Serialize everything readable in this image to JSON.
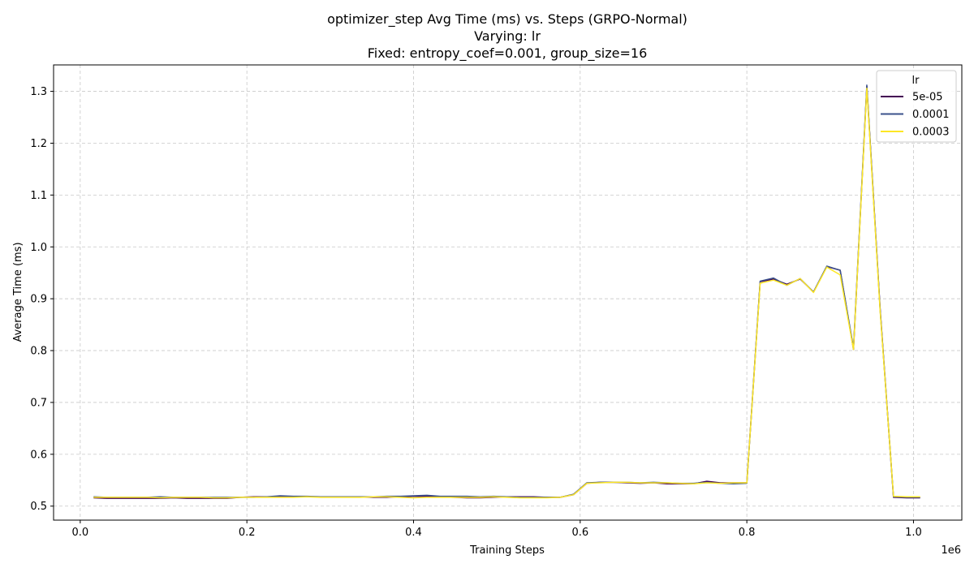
{
  "chart_data": {
    "type": "line",
    "title_lines": [
      "optimizer_step Avg Time (ms) vs. Steps (GRPO-Normal)",
      "Varying: lr",
      "Fixed: entropy_coef=0.001, group_size=16"
    ],
    "xlabel": "Training Steps",
    "ylabel": "Average Time (ms)",
    "x_offset_label": "1e6",
    "xlim": [
      -0.032,
      1.058
    ],
    "ylim": [
      0.473,
      1.351
    ],
    "xticks": [
      0.0,
      0.2,
      0.4,
      0.6,
      0.8,
      1.0
    ],
    "xtick_labels": [
      "0.0",
      "0.2",
      "0.4",
      "0.6",
      "0.8",
      "1.0"
    ],
    "yticks": [
      0.5,
      0.6,
      0.7,
      0.8,
      0.9,
      1.0,
      1.1,
      1.2,
      1.3
    ],
    "ytick_labels": [
      "0.5",
      "0.6",
      "0.7",
      "0.8",
      "0.9",
      "1.0",
      "1.1",
      "1.2",
      "1.3"
    ],
    "grid": true,
    "legend": {
      "title": "lr",
      "position": "top-right"
    },
    "x": [
      0.016,
      0.032,
      0.048,
      0.064,
      0.08,
      0.096,
      0.112,
      0.128,
      0.144,
      0.16,
      0.176,
      0.192,
      0.208,
      0.224,
      0.24,
      0.256,
      0.272,
      0.288,
      0.304,
      0.32,
      0.336,
      0.352,
      0.368,
      0.384,
      0.4,
      0.416,
      0.432,
      0.448,
      0.464,
      0.48,
      0.496,
      0.512,
      0.528,
      0.544,
      0.56,
      0.576,
      0.592,
      0.608,
      0.624,
      0.64,
      0.656,
      0.672,
      0.688,
      0.704,
      0.72,
      0.736,
      0.752,
      0.768,
      0.784,
      0.8,
      0.816,
      0.832,
      0.848,
      0.864,
      0.88,
      0.896,
      0.912,
      0.928,
      0.944,
      0.96,
      0.976,
      0.992,
      1.008
    ],
    "series": [
      {
        "name": "5e-05",
        "color": "#440154",
        "values": [
          0.516,
          0.515,
          0.515,
          0.515,
          0.515,
          0.515,
          0.516,
          0.515,
          0.515,
          0.515,
          0.515,
          0.517,
          0.518,
          0.518,
          0.518,
          0.518,
          0.518,
          0.518,
          0.518,
          0.518,
          0.518,
          0.517,
          0.517,
          0.518,
          0.519,
          0.519,
          0.518,
          0.517,
          0.516,
          0.516,
          0.517,
          0.518,
          0.518,
          0.518,
          0.517,
          0.517,
          0.522,
          0.544,
          0.546,
          0.546,
          0.545,
          0.544,
          0.545,
          0.543,
          0.543,
          0.543,
          0.548,
          0.545,
          0.545,
          0.545,
          0.933,
          0.938,
          0.928,
          0.938,
          0.913,
          0.962,
          0.955,
          0.802,
          1.31,
          0.88,
          0.517,
          0.516,
          0.516
        ]
      },
      {
        "name": "0.0001",
        "color": "#3b528b",
        "values": [
          0.518,
          0.517,
          0.517,
          0.517,
          0.517,
          0.518,
          0.517,
          0.517,
          0.517,
          0.517,
          0.517,
          0.517,
          0.517,
          0.518,
          0.52,
          0.519,
          0.519,
          0.518,
          0.518,
          0.518,
          0.518,
          0.518,
          0.519,
          0.519,
          0.52,
          0.521,
          0.519,
          0.519,
          0.519,
          0.518,
          0.519,
          0.518,
          0.517,
          0.517,
          0.517,
          0.517,
          0.523,
          0.545,
          0.546,
          0.546,
          0.546,
          0.545,
          0.546,
          0.545,
          0.544,
          0.544,
          0.546,
          0.544,
          0.543,
          0.544,
          0.934,
          0.94,
          0.926,
          0.939,
          0.913,
          0.963,
          0.955,
          0.805,
          1.312,
          0.878,
          0.518,
          0.517,
          0.517
        ]
      },
      {
        "name": "0.0003",
        "color": "#fde725",
        "values": [
          0.517,
          0.517,
          0.517,
          0.517,
          0.517,
          0.516,
          0.517,
          0.517,
          0.517,
          0.516,
          0.516,
          0.517,
          0.517,
          0.517,
          0.517,
          0.517,
          0.518,
          0.517,
          0.517,
          0.517,
          0.517,
          0.518,
          0.518,
          0.517,
          0.516,
          0.517,
          0.517,
          0.517,
          0.517,
          0.517,
          0.518,
          0.517,
          0.516,
          0.516,
          0.516,
          0.517,
          0.522,
          0.544,
          0.545,
          0.546,
          0.546,
          0.545,
          0.545,
          0.545,
          0.544,
          0.543,
          0.545,
          0.544,
          0.545,
          0.545,
          0.93,
          0.936,
          0.926,
          0.939,
          0.912,
          0.961,
          0.946,
          0.802,
          1.306,
          0.875,
          0.519,
          0.518,
          0.518
        ]
      }
    ]
  }
}
